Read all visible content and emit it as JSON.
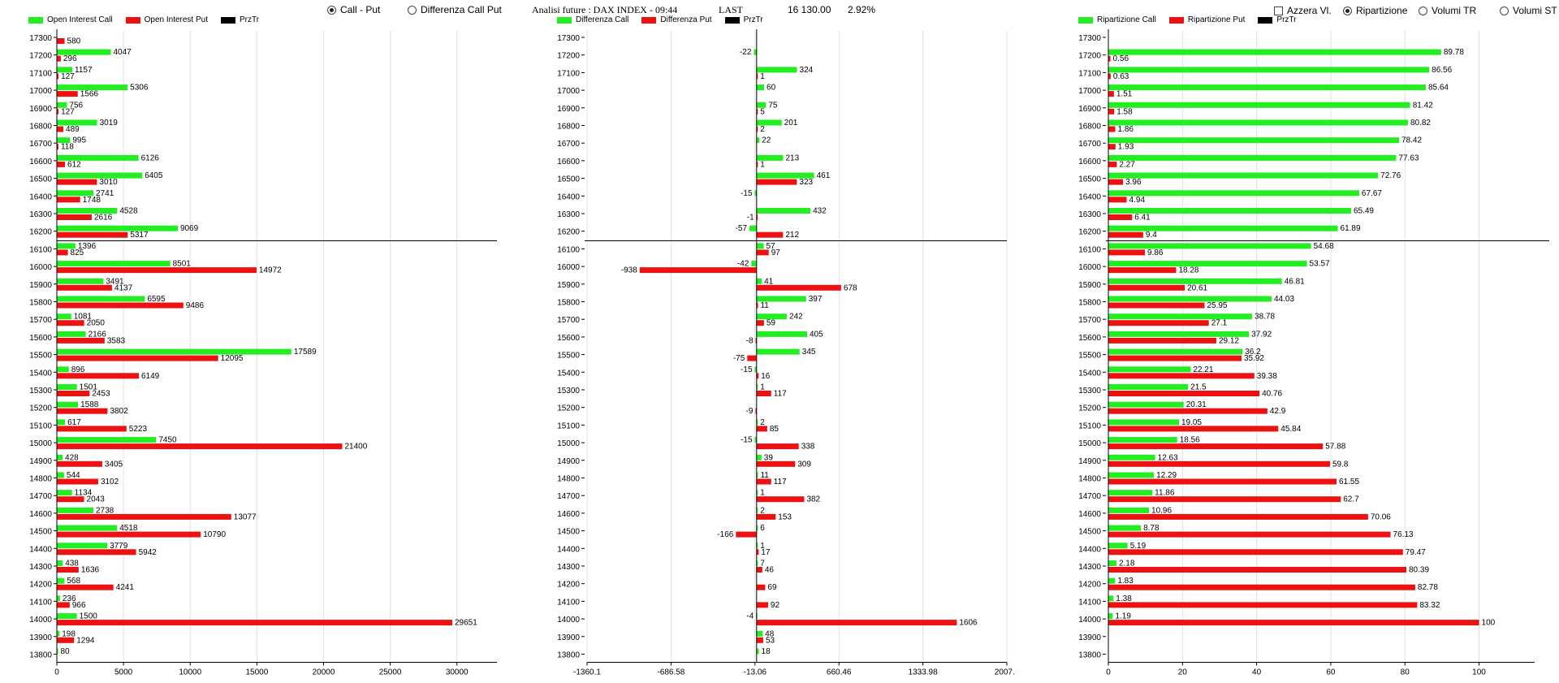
{
  "controls": {
    "radio_call_put": {
      "label": "Call - Put",
      "checked": true
    },
    "radio_diff": {
      "label": "Differenza Call Put",
      "checked": false
    },
    "check_azzera": {
      "label": "Azzera Vl.",
      "checked": false
    },
    "radio_ripartizione": {
      "label": "Ripartizione",
      "checked": true
    },
    "radio_volumi_tr": {
      "label": "Volumi TR",
      "checked": false
    },
    "radio_volumi_st": {
      "label": "Volumi ST",
      "checked": false
    }
  },
  "header": {
    "title": "Analisi future : DAX INDEX - 09:44",
    "last_label": "LAST",
    "last_value": "16 130.00",
    "pct": "2.92%"
  },
  "colors": {
    "call": "#22ee22",
    "put": "#ee1111",
    "prz": "#000000",
    "axis": "#000000",
    "grid": "#e0e0e0"
  },
  "chart_data": [
    {
      "type": "bar",
      "orientation": "horizontal",
      "legend": [
        "Open Interest Call",
        "Open Interest Put",
        "PrzTr"
      ],
      "categories": [
        17300,
        17200,
        17100,
        17000,
        16900,
        16800,
        16700,
        16600,
        16500,
        16400,
        16300,
        16200,
        16100,
        16000,
        15900,
        15800,
        15700,
        15600,
        15500,
        15400,
        15300,
        15200,
        15100,
        15000,
        14900,
        14800,
        14700,
        14600,
        14500,
        14400,
        14300,
        14200,
        14100,
        14000,
        13900,
        13800
      ],
      "series": [
        {
          "name": "Open Interest Call",
          "values": [
            null,
            4047,
            1157,
            5306,
            756,
            3019,
            995,
            6126,
            6405,
            2741,
            4528,
            9069,
            1396,
            8501,
            3491,
            6595,
            1081,
            2166,
            17589,
            896,
            1501,
            1588,
            617,
            7450,
            428,
            544,
            1134,
            2738,
            4518,
            3779,
            438,
            568,
            236,
            1500,
            198,
            80
          ]
        },
        {
          "name": "Open Interest Put",
          "values": [
            580,
            296,
            127,
            1566,
            127,
            489,
            118,
            612,
            3010,
            1748,
            2616,
            5317,
            825,
            14972,
            4137,
            9486,
            2050,
            3583,
            12095,
            6149,
            2453,
            3802,
            5223,
            21400,
            3405,
            3102,
            2043,
            13077,
            10790,
            5942,
            1636,
            4241,
            966,
            29651,
            1294,
            null
          ]
        }
      ],
      "price_line": 16100,
      "xticks": [
        "0",
        "5000",
        "10000",
        "15000",
        "20000",
        "25000",
        "30000"
      ],
      "xlim": [
        0,
        33000
      ]
    },
    {
      "type": "bar",
      "orientation": "horizontal",
      "legend": [
        "Differenza Call",
        "Differenza Put",
        "PrzTr"
      ],
      "categories": [
        17300,
        17200,
        17100,
        17000,
        16900,
        16800,
        16700,
        16600,
        16500,
        16400,
        16300,
        16200,
        16100,
        16000,
        15900,
        15800,
        15700,
        15600,
        15500,
        15400,
        15300,
        15200,
        15100,
        15000,
        14900,
        14800,
        14700,
        14600,
        14500,
        14400,
        14300,
        14200,
        14100,
        14000,
        13900,
        13800
      ],
      "series": [
        {
          "name": "Differenza Call",
          "values": [
            null,
            -22,
            324,
            60,
            75,
            201,
            22,
            213,
            461,
            -15,
            432,
            -57,
            57,
            -42,
            41,
            397,
            242,
            405,
            345,
            -15,
            1,
            null,
            2,
            -15,
            39,
            11,
            1,
            2,
            6,
            1,
            7,
            null,
            null,
            -4,
            48,
            18
          ]
        },
        {
          "name": "Differenza Put",
          "values": [
            null,
            null,
            1,
            null,
            5,
            2,
            null,
            1,
            323,
            null,
            -1,
            212,
            97,
            -938,
            678,
            11,
            59,
            -8,
            -75,
            16,
            117,
            -9,
            85,
            338,
            309,
            117,
            382,
            153,
            -166,
            17,
            46,
            69,
            92,
            1606,
            53,
            null
          ]
        }
      ],
      "price_line": 16100,
      "xticks": [
        "-1360.1",
        "-686.58",
        "-13.06",
        "660.46",
        "1333.98",
        "2007.5"
      ],
      "xlim": [
        -1360.1,
        2007.5
      ]
    },
    {
      "type": "bar",
      "orientation": "horizontal",
      "legend": [
        "Ripartizione Call",
        "Ripartizione Put",
        "PrzTr"
      ],
      "categories": [
        17300,
        17200,
        17100,
        17000,
        16900,
        16800,
        16700,
        16600,
        16500,
        16400,
        16300,
        16200,
        16100,
        16000,
        15900,
        15800,
        15700,
        15600,
        15500,
        15400,
        15300,
        15200,
        15100,
        15000,
        14900,
        14800,
        14700,
        14600,
        14500,
        14400,
        14300,
        14200,
        14100,
        14000,
        13900,
        13800
      ],
      "series": [
        {
          "name": "Ripartizione Call",
          "values": [
            null,
            89.78,
            86.56,
            85.64,
            81.42,
            80.82,
            78.42,
            77.63,
            72.76,
            67.67,
            65.49,
            61.89,
            54.68,
            53.57,
            46.81,
            44.03,
            38.78,
            37.92,
            36.2,
            22.21,
            21.5,
            20.31,
            19.05,
            18.56,
            12.63,
            12.29,
            11.86,
            10.96,
            8.78,
            5.19,
            2.18,
            1.83,
            1.38,
            1.19,
            null,
            null
          ]
        },
        {
          "name": "Ripartizione Put",
          "values": [
            null,
            0.56,
            0.63,
            1.51,
            1.58,
            1.86,
            1.93,
            2.27,
            3.96,
            4.94,
            6.41,
            9.4,
            9.86,
            18.28,
            20.61,
            25.95,
            27.1,
            29.12,
            35.92,
            39.38,
            40.76,
            42.9,
            45.84,
            57.88,
            59.8,
            61.55,
            62.7,
            70.06,
            76.13,
            79.47,
            80.39,
            82.78,
            83.32,
            100,
            null,
            null
          ]
        }
      ],
      "price_line": 16100,
      "xticks": [
        "0",
        "20",
        "40",
        "60",
        "80",
        "100"
      ],
      "xlim": [
        0,
        115
      ]
    }
  ]
}
